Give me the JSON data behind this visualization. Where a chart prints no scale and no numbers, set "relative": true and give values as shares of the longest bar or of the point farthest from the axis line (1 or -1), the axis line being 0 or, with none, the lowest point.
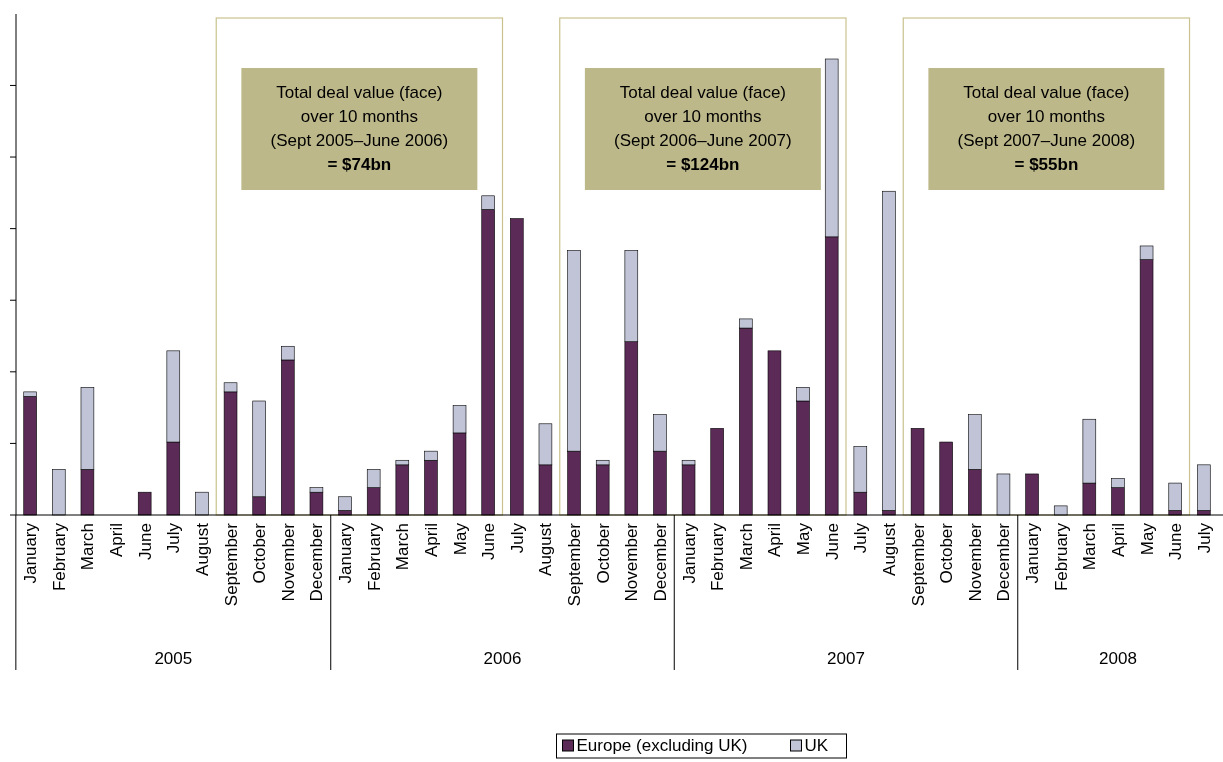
{
  "chart_data": {
    "type": "bar",
    "stacked": true,
    "relative": true,
    "legend": "bottom",
    "grid": false,
    "categories": [
      "January",
      "February",
      "March",
      "April",
      "June",
      "July",
      "August",
      "September",
      "October",
      "November",
      "December",
      "January",
      "February",
      "March",
      "April",
      "May",
      "June",
      "July",
      "August",
      "September",
      "October",
      "November",
      "December",
      "January",
      "February",
      "March",
      "April",
      "May",
      "June",
      "July",
      "August",
      "September",
      "October",
      "November",
      "December",
      "January",
      "February",
      "March",
      "April",
      "May",
      "June",
      "July"
    ],
    "series": [
      {
        "name": "Europe (excluding UK)",
        "color": "#5b2a57",
        "values": [
          0.26,
          0,
          0.1,
          0,
          0.05,
          0.16,
          0,
          0.27,
          0.04,
          0.34,
          0.05,
          0.01,
          0.06,
          0.11,
          0.12,
          0.18,
          0.67,
          0.65,
          0.11,
          0.14,
          0.11,
          0.38,
          0.14,
          0.11,
          0.19,
          0.41,
          0.36,
          0.25,
          0.61,
          0.05,
          0.01,
          0.19,
          0.16,
          0.1,
          0,
          0.09,
          0,
          0.07,
          0.06,
          0.56,
          0.01,
          0.01
        ]
      },
      {
        "name": "UK",
        "color": "#c0c4d6",
        "values": [
          0.01,
          0.1,
          0.18,
          0,
          0,
          0.2,
          0.05,
          0.02,
          0.21,
          0.03,
          0.01,
          0.03,
          0.04,
          0.01,
          0.02,
          0.06,
          0.03,
          0,
          0.09,
          0.44,
          0.01,
          0.2,
          0.08,
          0.01,
          0,
          0.02,
          0,
          0.03,
          0.39,
          0.1,
          0.7,
          0,
          0,
          0.12,
          0.09,
          0,
          0.02,
          0.14,
          0.02,
          0.03,
          0.06,
          0.1
        ]
      }
    ],
    "annotations": [
      "Total deal value (face)\nover 10 months\n(Sept 2005–June 2006)\n= $74bn",
      "Total deal value (face)\nover 10 months\n(Sept 2006–June 2007)\n= $124bn",
      "Total deal value (face)\nover 10 months\n(Sept 2007–June 2008)\n= $55bn",
      "2005",
      "2006",
      "2007",
      "2008"
    ]
  }
}
